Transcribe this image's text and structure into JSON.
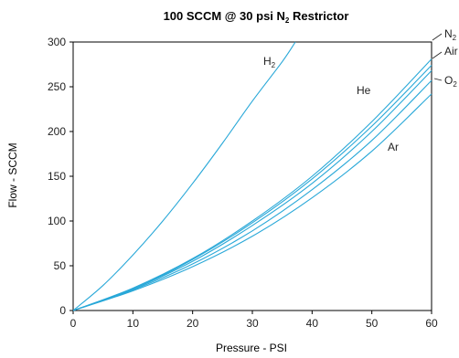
{
  "chart_data": {
    "type": "line",
    "title": "100 SCCM @ 30 psi N",
    "title_subscript": "2",
    "title_suffix": " Restrictor",
    "xlabel": "Pressure - PSI",
    "ylabel": "Flow - SCCM",
    "xlim": [
      0,
      60
    ],
    "ylim": [
      0,
      300
    ],
    "xticks": [
      0,
      10,
      20,
      30,
      40,
      50,
      60
    ],
    "yticks": [
      0,
      50,
      100,
      150,
      200,
      250,
      300
    ],
    "grid": false,
    "line_color": "#29a8d8",
    "series": [
      {
        "name": "H",
        "name_subscript": "2",
        "x": [
          0,
          5,
          10,
          15,
          20,
          25,
          30,
          35,
          37.2
        ],
        "y": [
          0,
          28,
          62,
          100,
          142,
          187,
          234,
          278,
          300
        ]
      },
      {
        "name": "N",
        "name_subscript": "2",
        "x": [
          0,
          10,
          20,
          30,
          40,
          50,
          60
        ],
        "y": [
          0,
          25,
          58,
          100,
          150,
          211,
          281
        ]
      },
      {
        "name": "Air",
        "x": [
          0,
          10,
          20,
          30,
          40,
          50,
          60
        ],
        "y": [
          0,
          24,
          57,
          98,
          147,
          206,
          274
        ]
      },
      {
        "name": "He",
        "x": [
          0,
          10,
          20,
          30,
          40,
          50,
          60
        ],
        "y": [
          0,
          24,
          55,
          95,
          142,
          200,
          268
        ]
      },
      {
        "name": "O",
        "name_subscript": "2",
        "x": [
          0,
          10,
          20,
          30,
          40,
          50,
          60
        ],
        "y": [
          0,
          23,
          52,
          89,
          135,
          190,
          257
        ]
      },
      {
        "name": "Ar",
        "x": [
          0,
          10,
          20,
          30,
          40,
          50,
          60
        ],
        "y": [
          0,
          22,
          49,
          83,
          126,
          178,
          242
        ]
      }
    ]
  }
}
